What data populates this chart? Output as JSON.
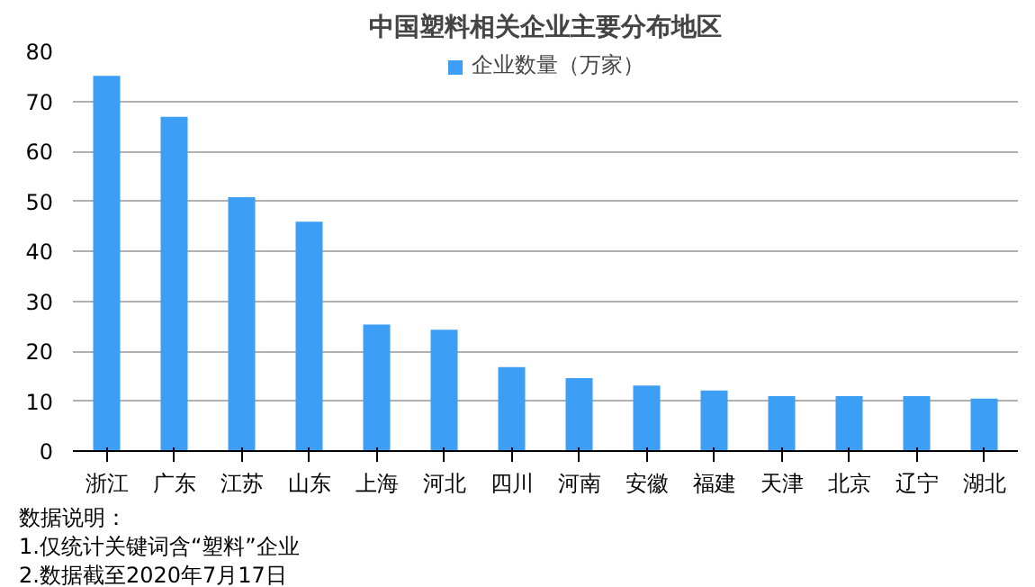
{
  "chart_data": {
    "type": "bar",
    "title": "中国塑料相关企业主要分布地区",
    "categories": [
      "浙江",
      "广东",
      "江苏",
      "山东",
      "上海",
      "河北",
      "四川",
      "河南",
      "安徽",
      "福建",
      "天津",
      "北京",
      "辽宁",
      "湖北"
    ],
    "series": [
      {
        "name": "企业数量（万家）",
        "color": "#3d9ef5",
        "values": [
          75.1,
          66.9,
          50.8,
          45.9,
          25.3,
          24.3,
          16.8,
          14.6,
          13.1,
          12.1,
          11,
          11,
          11,
          10.5
        ]
      }
    ],
    "ylim": [
      0,
      80
    ],
    "yticks": [
      0,
      10,
      20,
      30,
      40,
      50,
      60,
      70,
      80
    ],
    "grid": "y",
    "legend": "top",
    "annotations": [
      "数据说明：",
      "1.仅统计关键词含“塑料”企业",
      "2.数据截至2020年7月17日"
    ]
  }
}
